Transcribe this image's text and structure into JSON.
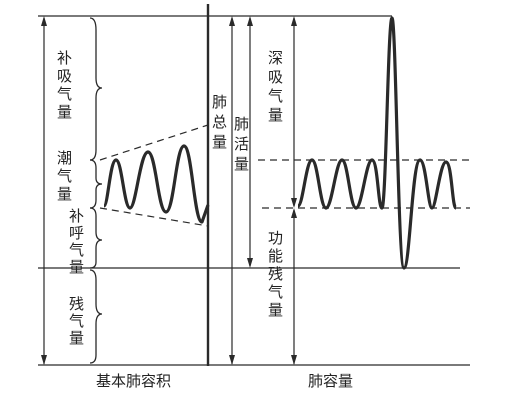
{
  "labels": {
    "inspiratory_reserve": "补吸气量",
    "tidal": "潮气量",
    "expiratory_reserve": "补呼气量",
    "residual": "残气量",
    "total_capacity": "肺总量",
    "vital_capacity": "肺活量",
    "inspiratory_capacity": "深吸气量",
    "functional_residual": "功能残气量",
    "basic_volumes": "基本肺容积",
    "lung_capacities": "肺容量"
  },
  "colors": {
    "ink": "#2a2a2a",
    "background": "#ffffff"
  }
}
